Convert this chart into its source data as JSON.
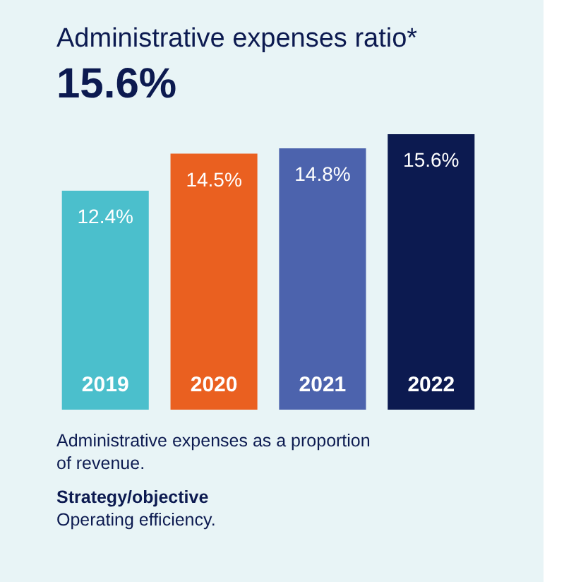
{
  "chart_data": {
    "type": "bar",
    "title": "Administrative expenses ratio*",
    "subtitle": "15.6%",
    "categories": [
      "2019",
      "2020",
      "2021",
      "2022"
    ],
    "values": [
      12.4,
      14.5,
      14.8,
      15.6
    ],
    "colors": [
      "#4bbfcc",
      "#ea6020",
      "#4c63ad",
      "#0c1a50"
    ],
    "value_labels": [
      "12.4%",
      "14.5%",
      "14.8%",
      "15.6%"
    ],
    "annotations": [
      "Administrative expenses as a proportion",
      "of revenue.",
      "Strategy/objective",
      "Operating efficiency."
    ]
  }
}
